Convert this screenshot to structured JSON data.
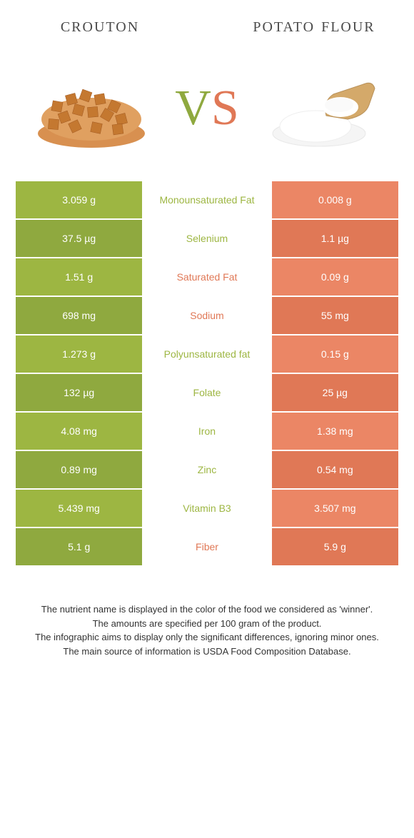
{
  "colors": {
    "left_main": "#9db642",
    "left_alt": "#8fa93f",
    "right_main": "#eb8665",
    "right_alt": "#e07856",
    "mid_text_left": "#9db642",
    "mid_text_right": "#e07856"
  },
  "header": {
    "left_title": "crouton",
    "right_title": "potato flour"
  },
  "vs": {
    "v": "V",
    "s": "S"
  },
  "rows": [
    {
      "left": "3.059 g",
      "mid": "Monounsaturated Fat",
      "right": "0.008 g",
      "winner": "left"
    },
    {
      "left": "37.5 µg",
      "mid": "Selenium",
      "right": "1.1 µg",
      "winner": "left"
    },
    {
      "left": "1.51 g",
      "mid": "Saturated Fat",
      "right": "0.09 g",
      "winner": "right"
    },
    {
      "left": "698 mg",
      "mid": "Sodium",
      "right": "55 mg",
      "winner": "right"
    },
    {
      "left": "1.273 g",
      "mid": "Polyunsaturated fat",
      "right": "0.15 g",
      "winner": "left"
    },
    {
      "left": "132 µg",
      "mid": "Folate",
      "right": "25 µg",
      "winner": "left"
    },
    {
      "left": "4.08 mg",
      "mid": "Iron",
      "right": "1.38 mg",
      "winner": "left"
    },
    {
      "left": "0.89 mg",
      "mid": "Zinc",
      "right": "0.54 mg",
      "winner": "left"
    },
    {
      "left": "5.439 mg",
      "mid": "Vitamin B3",
      "right": "3.507 mg",
      "winner": "left"
    },
    {
      "left": "5.1 g",
      "mid": "Fiber",
      "right": "5.9 g",
      "winner": "right"
    }
  ],
  "notes": {
    "l1": "The nutrient name is displayed in the color of the food we considered as 'winner'.",
    "l2": "The amounts are specified per 100 gram of the product.",
    "l3": "The infographic aims to display only the significant differences, ignoring minor ones.",
    "l4": "The main source of information is USDA Food Composition Database."
  }
}
